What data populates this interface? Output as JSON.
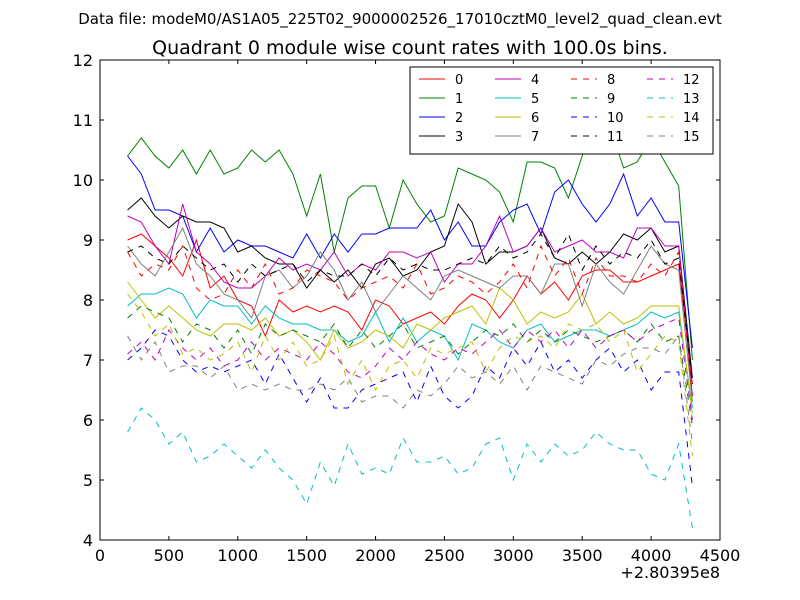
{
  "figure": {
    "suptitle": "Data file: modeM0/AS1A05_225T02_9000002526_17010cztM0_level2_quad_clean.evt"
  },
  "chart_data": {
    "type": "line",
    "title": "Quadrant 0 module wise count rates with 100.0s bins.",
    "xlabel": "",
    "ylabel": "",
    "x_offset_label": "+2.80395e8",
    "xlim": [
      0,
      4500
    ],
    "ylim": [
      4,
      12
    ],
    "xticks": [
      0,
      500,
      1000,
      1500,
      2000,
      2500,
      3000,
      3500,
      4000,
      4500
    ],
    "yticks": [
      4,
      5,
      6,
      7,
      8,
      9,
      10,
      11,
      12
    ],
    "grid": false,
    "legend": {
      "position": "top-right",
      "columns": 4
    },
    "x": [
      200,
      300,
      400,
      500,
      600,
      700,
      800,
      900,
      1000,
      1100,
      1200,
      1300,
      1400,
      1500,
      1600,
      1700,
      1800,
      1900,
      2000,
      2100,
      2200,
      2300,
      2400,
      2500,
      2600,
      2700,
      2800,
      2900,
      3000,
      3100,
      3200,
      3300,
      3400,
      3500,
      3600,
      3700,
      3800,
      3900,
      4000,
      4100,
      4200,
      4300
    ],
    "series": [
      {
        "name": "0",
        "color": "#ff0000",
        "dash": "solid",
        "values": [
          9.0,
          9.1,
          8.9,
          8.7,
          8.4,
          9.0,
          8.2,
          8.4,
          8.0,
          7.9,
          7.4,
          8.0,
          7.8,
          7.9,
          7.8,
          7.9,
          7.8,
          7.5,
          8.0,
          7.9,
          7.6,
          7.7,
          7.8,
          7.6,
          7.9,
          8.1,
          8.0,
          7.7,
          8.0,
          8.4,
          8.1,
          8.3,
          8.0,
          8.4,
          8.5,
          8.5,
          8.3,
          8.3,
          8.4,
          8.5,
          8.6,
          6.6
        ]
      },
      {
        "name": "1",
        "color": "#008000",
        "dash": "solid",
        "values": [
          10.4,
          10.7,
          10.4,
          10.2,
          10.5,
          10.1,
          10.5,
          10.1,
          10.2,
          10.5,
          10.3,
          10.5,
          10.1,
          9.4,
          10.1,
          8.8,
          9.7,
          9.9,
          9.9,
          9.2,
          10.0,
          9.6,
          9.3,
          9.4,
          10.2,
          10.1,
          10.0,
          9.8,
          9.3,
          10.3,
          10.3,
          10.2,
          9.7,
          10.4,
          11.1,
          10.9,
          10.2,
          10.3,
          10.7,
          10.3,
          9.9,
          7.0
        ]
      },
      {
        "name": "2",
        "color": "#0000ff",
        "dash": "solid",
        "values": [
          10.4,
          10.1,
          9.5,
          9.5,
          9.4,
          8.8,
          9.2,
          8.8,
          9.0,
          8.9,
          8.9,
          8.8,
          8.7,
          9.1,
          8.7,
          9.1,
          8.8,
          9.1,
          9.1,
          9.2,
          9.2,
          9.2,
          9.5,
          9.0,
          9.3,
          8.9,
          8.9,
          9.3,
          9.5,
          9.6,
          9.1,
          9.8,
          10.0,
          9.6,
          9.3,
          9.6,
          10.1,
          9.4,
          9.7,
          9.3,
          9.3,
          7.2
        ]
      },
      {
        "name": "3",
        "color": "#000000",
        "dash": "solid",
        "values": [
          9.5,
          9.7,
          9.4,
          9.2,
          9.4,
          9.3,
          9.3,
          9.2,
          8.8,
          8.9,
          8.7,
          8.6,
          8.6,
          8.2,
          8.5,
          8.3,
          8.5,
          8.2,
          8.6,
          8.7,
          8.4,
          8.5,
          8.8,
          8.9,
          9.6,
          9.3,
          8.6,
          8.8,
          8.8,
          8.9,
          9.2,
          8.7,
          8.6,
          8.8,
          8.6,
          8.8,
          9.1,
          9.0,
          9.2,
          8.8,
          8.9,
          6.7
        ]
      },
      {
        "name": "4",
        "color": "#bf00bf",
        "dash": "solid",
        "values": [
          9.4,
          9.3,
          8.9,
          8.6,
          9.6,
          8.8,
          8.6,
          8.3,
          8.2,
          8.2,
          8.4,
          8.7,
          8.5,
          8.6,
          8.5,
          8.8,
          8.4,
          8.6,
          8.5,
          8.8,
          8.8,
          8.7,
          8.8,
          8.3,
          8.6,
          8.6,
          8.9,
          9.4,
          8.8,
          8.9,
          9.2,
          8.8,
          8.9,
          9.0,
          8.8,
          8.8,
          8.7,
          9.2,
          9.2,
          8.9,
          8.9,
          6.4
        ]
      },
      {
        "name": "5",
        "color": "#00bfbf",
        "dash": "solid",
        "values": [
          7.9,
          8.1,
          8.1,
          8.2,
          8.1,
          7.7,
          8.0,
          7.9,
          7.9,
          7.6,
          7.9,
          7.7,
          7.6,
          7.6,
          7.5,
          7.5,
          7.3,
          7.4,
          7.8,
          7.3,
          7.7,
          7.3,
          7.5,
          7.4,
          7.0,
          7.6,
          7.5,
          7.3,
          7.2,
          7.5,
          7.6,
          7.3,
          7.4,
          7.5,
          7.5,
          7.4,
          7.5,
          7.6,
          7.8,
          7.7,
          7.8,
          6.2
        ]
      },
      {
        "name": "6",
        "color": "#bfbf00",
        "dash": "solid",
        "values": [
          8.3,
          8.0,
          7.7,
          7.9,
          7.7,
          7.5,
          7.4,
          7.6,
          7.6,
          7.5,
          7.7,
          7.4,
          7.5,
          7.3,
          7.0,
          7.5,
          7.2,
          7.3,
          7.5,
          7.4,
          7.2,
          7.6,
          7.5,
          7.7,
          7.8,
          7.9,
          7.6,
          8.2,
          8.0,
          7.6,
          7.8,
          7.7,
          7.8,
          8.1,
          7.6,
          7.8,
          7.6,
          7.7,
          7.9,
          7.9,
          7.9,
          6.1
        ]
      },
      {
        "name": "7",
        "color": "#808080",
        "dash": "solid",
        "values": [
          8.9,
          8.6,
          8.4,
          8.8,
          9.2,
          8.6,
          8.4,
          8.1,
          8.0,
          7.7,
          8.4,
          8.5,
          8.2,
          8.4,
          8.8,
          8.5,
          8.0,
          8.3,
          7.8,
          8.1,
          8.4,
          8.2,
          8.0,
          8.4,
          8.5,
          8.4,
          8.3,
          8.2,
          8.4,
          8.4,
          8.1,
          8.6,
          8.6,
          7.9,
          8.6,
          8.3,
          8.1,
          8.5,
          8.9,
          8.6,
          8.5,
          6.3
        ]
      },
      {
        "name": "8",
        "color": "#ff0000",
        "dash": "dashed",
        "values": [
          8.8,
          8.4,
          8.6,
          8.5,
          8.9,
          8.2,
          8.0,
          8.1,
          8.5,
          8.2,
          8.6,
          8.1,
          8.2,
          8.5,
          8.4,
          8.3,
          8.0,
          8.2,
          8.3,
          8.4,
          8.2,
          8.6,
          8.1,
          8.2,
          8.4,
          8.3,
          8.1,
          8.3,
          8.6,
          8.2,
          8.9,
          8.4,
          8.7,
          8.1,
          8.7,
          8.4,
          8.4,
          8.3,
          8.6,
          8.4,
          8.8,
          6.4
        ]
      },
      {
        "name": "9",
        "color": "#008000",
        "dash": "dashed",
        "values": [
          7.7,
          7.9,
          7.8,
          7.7,
          7.3,
          7.6,
          7.5,
          7.2,
          7.5,
          7.1,
          7.6,
          7.4,
          7.5,
          7.4,
          7.3,
          7.6,
          7.2,
          7.5,
          7.2,
          7.4,
          7.6,
          7.2,
          7.3,
          7.4,
          7.1,
          7.3,
          7.5,
          7.4,
          7.6,
          7.3,
          7.5,
          7.3,
          7.5,
          7.4,
          7.3,
          7.4,
          7.5,
          7.3,
          7.6,
          7.3,
          7.4,
          5.9
        ]
      },
      {
        "name": "10",
        "color": "#0000ff",
        "dash": "dashed",
        "values": [
          7.0,
          7.2,
          7.5,
          7.4,
          7.0,
          6.8,
          6.9,
          6.8,
          6.9,
          7.0,
          6.6,
          7.1,
          6.7,
          6.3,
          6.7,
          6.2,
          6.2,
          6.5,
          6.6,
          6.7,
          6.8,
          6.3,
          6.9,
          6.4,
          6.2,
          6.4,
          6.9,
          6.7,
          7.2,
          6.9,
          7.3,
          6.8,
          7.0,
          6.7,
          7.0,
          7.2,
          6.8,
          7.0,
          6.5,
          6.8,
          6.8,
          4.9
        ]
      },
      {
        "name": "11",
        "color": "#000000",
        "dash": "dashed",
        "values": [
          8.8,
          8.9,
          8.7,
          8.6,
          8.9,
          8.7,
          8.5,
          8.6,
          8.3,
          8.6,
          8.4,
          8.5,
          8.6,
          8.3,
          8.5,
          8.4,
          8.4,
          8.6,
          8.4,
          8.7,
          8.5,
          8.6,
          8.5,
          8.5,
          8.6,
          8.7,
          8.6,
          8.9,
          8.7,
          8.8,
          9.1,
          8.7,
          9.1,
          8.5,
          8.9,
          8.6,
          8.8,
          8.7,
          9.0,
          8.6,
          8.7,
          6.6
        ]
      },
      {
        "name": "12",
        "color": "#bf00bf",
        "dash": "dashed",
        "values": [
          7.1,
          7.3,
          7.0,
          7.5,
          7.2,
          7.0,
          7.2,
          6.9,
          7.0,
          7.3,
          7.0,
          7.2,
          7.1,
          7.0,
          7.3,
          7.1,
          6.8,
          6.7,
          6.9,
          7.2,
          7.0,
          7.3,
          7.1,
          7.0,
          7.2,
          7.1,
          7.3,
          7.5,
          7.2,
          7.5,
          7.3,
          7.5,
          7.2,
          7.5,
          7.2,
          7.4,
          7.5,
          7.3,
          7.5,
          7.6,
          7.7,
          6.0
        ]
      },
      {
        "name": "13",
        "color": "#00bfbf",
        "dash": "dashed",
        "values": [
          5.8,
          6.2,
          6.0,
          5.6,
          5.8,
          5.3,
          5.4,
          5.6,
          5.4,
          5.2,
          5.5,
          5.2,
          5.0,
          4.6,
          5.3,
          4.9,
          5.6,
          5.1,
          5.2,
          5.1,
          5.7,
          5.3,
          5.3,
          5.4,
          5.1,
          5.2,
          5.6,
          5.7,
          5.0,
          5.6,
          5.3,
          5.6,
          5.4,
          5.5,
          5.8,
          5.6,
          5.5,
          5.5,
          5.1,
          5.0,
          5.6,
          4.2
        ]
      },
      {
        "name": "14",
        "color": "#bfbf00",
        "dash": "dashed",
        "values": [
          8.1,
          7.8,
          7.4,
          7.6,
          7.1,
          7.2,
          7.0,
          7.1,
          7.3,
          6.8,
          7.4,
          7.0,
          7.3,
          6.9,
          7.0,
          7.4,
          6.6,
          7.0,
          6.5,
          6.9,
          7.0,
          6.7,
          7.2,
          7.1,
          7.2,
          7.3,
          6.8,
          7.2,
          7.4,
          7.3,
          7.4,
          7.2,
          7.6,
          7.5,
          7.6,
          7.3,
          7.5,
          6.8,
          7.1,
          7.4,
          7.3,
          5.4
        ]
      },
      {
        "name": "15",
        "color": "#808080",
        "dash": "dashed",
        "values": [
          7.4,
          7.0,
          7.3,
          6.8,
          6.9,
          6.9,
          6.7,
          6.9,
          6.5,
          6.6,
          6.5,
          6.6,
          6.5,
          6.5,
          6.6,
          6.5,
          6.7,
          6.3,
          6.4,
          6.4,
          6.2,
          6.5,
          6.4,
          6.6,
          6.9,
          6.7,
          6.8,
          6.6,
          6.9,
          6.5,
          6.9,
          6.8,
          6.7,
          6.6,
          7.0,
          6.9,
          7.1,
          7.2,
          7.2,
          7.1,
          7.4,
          5.6
        ]
      }
    ]
  }
}
